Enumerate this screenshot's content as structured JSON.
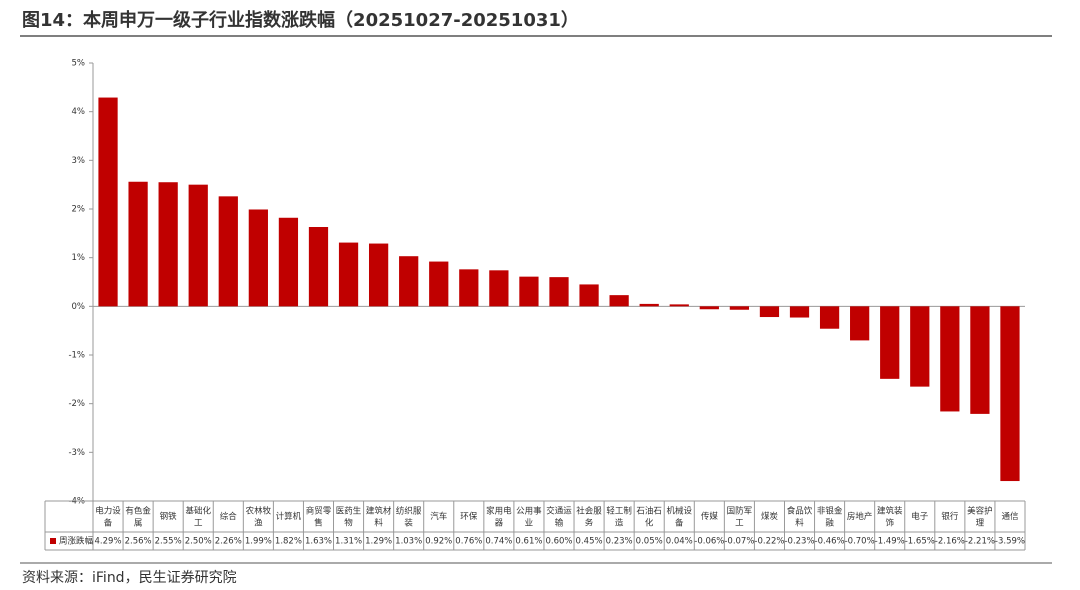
{
  "title": "图14：本周申万一级子行业指数涨跌幅（20251027-20251031）",
  "source": "资料来源：iFind，民生证券研究院",
  "chart_data": {
    "type": "bar",
    "categories": [
      "电力设备",
      "有色金属",
      "钢铁",
      "基础化工",
      "综合",
      "农林牧渔",
      "计算机",
      "商贸零售",
      "医药生物",
      "建筑材料",
      "纺织服装",
      "汽车",
      "环保",
      "家用电器",
      "公用事业",
      "交通运输",
      "社会服务",
      "轻工制造",
      "石油石化",
      "机械设备",
      "传媒",
      "国防军工",
      "煤炭",
      "食品饮料",
      "非银金融",
      "房地产",
      "建筑装饰",
      "电子",
      "银行",
      "美容护理",
      "通信"
    ],
    "series": [
      {
        "name": "周涨跌幅",
        "color": "#c00000",
        "values": [
          4.29,
          2.56,
          2.55,
          2.5,
          2.26,
          1.99,
          1.82,
          1.63,
          1.31,
          1.29,
          1.03,
          0.92,
          0.76,
          0.74,
          0.61,
          0.6,
          0.45,
          0.23,
          0.05,
          0.04,
          -0.06,
          -0.07,
          -0.22,
          -0.23,
          -0.46,
          -0.7,
          -1.49,
          -1.65,
          -2.16,
          -2.21,
          -3.59
        ],
        "value_labels": [
          "4.29%",
          "2.56%",
          "2.55%",
          "2.50%",
          "2.26%",
          "1.99%",
          "1.82%",
          "1.63%",
          "1.31%",
          "1.29%",
          "1.03%",
          "0.92%",
          "0.76%",
          "0.74%",
          "0.61%",
          "0.60%",
          "0.45%",
          "0.23%",
          "0.05%",
          "0.04%",
          "-0.06%",
          "-0.07%",
          "-0.22%",
          "-0.23%",
          "-0.46%",
          "-0.70%",
          "-1.49%",
          "-1.65%",
          "-2.16%",
          "-2.21%",
          "-3.59%"
        ]
      }
    ],
    "ylim": [
      -4,
      5
    ],
    "yticks": [
      {
        "value": -4,
        "label": "-4%"
      },
      {
        "value": -3,
        "label": "-3%"
      },
      {
        "value": -2,
        "label": "-2%"
      },
      {
        "value": -1,
        "label": "-1%"
      },
      {
        "value": 0,
        "label": "0%"
      },
      {
        "value": 1,
        "label": "1%"
      },
      {
        "value": 2,
        "label": "2%"
      },
      {
        "value": 3,
        "label": "3%"
      },
      {
        "value": 4,
        "label": "4%"
      },
      {
        "value": 5,
        "label": "5%"
      }
    ]
  }
}
